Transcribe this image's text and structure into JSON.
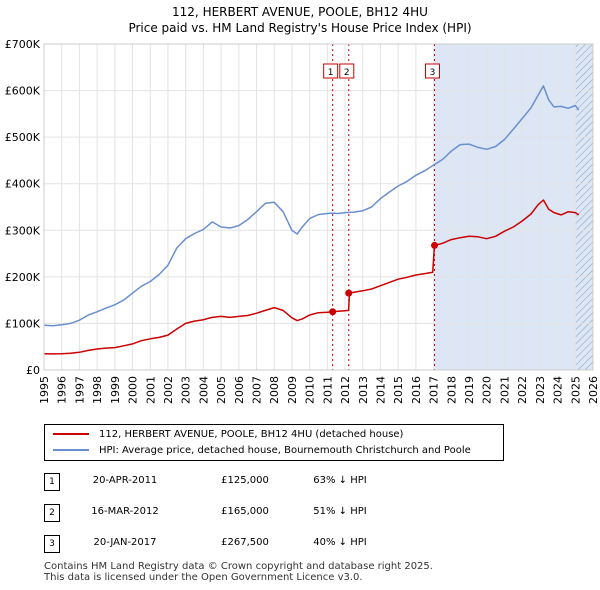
{
  "title_line1": "112, HERBERT AVENUE, POOLE, BH12 4HU",
  "title_line2": "Price paid vs. HM Land Registry's House Price Index (HPI)",
  "colors": {
    "price": "#cc0000",
    "hpi": "#6a8fd0",
    "shade": "#dce6f5",
    "marker": "#cc0000"
  },
  "chart_data": {
    "type": "line",
    "title": "Price paid vs. HM Land Registry's House Price Index (HPI)",
    "xlabel": "",
    "ylabel": "",
    "xlim": [
      1995,
      2026
    ],
    "ylim": [
      0,
      700000
    ],
    "y_ticks": [
      0,
      100000,
      200000,
      300000,
      400000,
      500000,
      600000,
      700000
    ],
    "y_tick_labels": [
      "£0",
      "£100K",
      "£200K",
      "£300K",
      "£400K",
      "£500K",
      "£600K",
      "£700K"
    ],
    "x_ticks": [
      1995,
      1996,
      1997,
      1998,
      1999,
      2000,
      2001,
      2002,
      2003,
      2004,
      2005,
      2006,
      2007,
      2008,
      2009,
      2010,
      2011,
      2012,
      2013,
      2014,
      2015,
      2016,
      2017,
      2018,
      2019,
      2020,
      2021,
      2022,
      2023,
      2024,
      2025,
      2026
    ],
    "x_tick_labels": [
      "1995",
      "1996",
      "1997",
      "1998",
      "1999",
      "2000",
      "2001",
      "2002",
      "2003",
      "2004",
      "2005",
      "2006",
      "2007",
      "2008",
      "2009",
      "2010",
      "2011",
      "2012",
      "2013",
      "2014",
      "2015",
      "2016",
      "2017",
      "2018",
      "2019",
      "2020",
      "2021",
      "2022",
      "2023",
      "2024",
      "2025",
      "2026"
    ],
    "shaded_from": 2017.05,
    "hatched_from": 2025.0,
    "grid": true,
    "legend_position": "below",
    "series": [
      {
        "name": "112, HERBERT AVENUE, POOLE, BH12 4HU (detached house)",
        "x": [
          1995.0,
          1995.5,
          1996.0,
          1996.5,
          1997.0,
          1997.5,
          1998.0,
          1998.5,
          1999.0,
          1999.5,
          2000.0,
          2000.5,
          2001.0,
          2001.5,
          2002.0,
          2002.5,
          2003.0,
          2003.5,
          2004.0,
          2004.5,
          2005.0,
          2005.5,
          2006.0,
          2006.5,
          2007.0,
          2007.5,
          2008.0,
          2008.5,
          2009.0,
          2009.3,
          2009.6,
          2010.0,
          2010.5,
          2011.0,
          2011.3,
          2011.6,
          2011.9,
          2012.2,
          2012.25,
          2012.5,
          2013.0,
          2013.5,
          2014.0,
          2014.5,
          2015.0,
          2015.5,
          2016.0,
          2016.5,
          2016.95,
          2017.05,
          2017.5,
          2018.0,
          2018.5,
          2019.0,
          2019.5,
          2020.0,
          2020.5,
          2021.0,
          2021.5,
          2022.0,
          2022.5,
          2022.9,
          2023.2,
          2023.5,
          2023.8,
          2024.2,
          2024.6,
          2025.0,
          2025.2
        ],
        "values": [
          35000,
          34500,
          35000,
          36000,
          38000,
          42000,
          45000,
          47000,
          48000,
          52000,
          56000,
          63000,
          67000,
          70000,
          75000,
          88000,
          100000,
          105000,
          108000,
          113000,
          115000,
          113000,
          115000,
          117000,
          122000,
          128000,
          134000,
          128000,
          112000,
          106000,
          110000,
          118000,
          123000,
          124000,
          125000,
          126000,
          127000,
          128000,
          165000,
          167000,
          170000,
          174000,
          181000,
          188000,
          195000,
          199000,
          204000,
          207000,
          210000,
          267500,
          272000,
          280000,
          284000,
          287000,
          286000,
          282000,
          287000,
          298000,
          307000,
          320000,
          335000,
          355000,
          365000,
          345000,
          338000,
          333000,
          340000,
          338000,
          333000
        ]
      },
      {
        "name": "HPI: Average price, detached house, Bournemouth Christchurch and Poole",
        "x": [
          1995.0,
          1995.5,
          1996.0,
          1996.5,
          1997.0,
          1997.5,
          1998.0,
          1998.5,
          1999.0,
          1999.5,
          2000.0,
          2000.5,
          2001.0,
          2001.5,
          2002.0,
          2002.5,
          2003.0,
          2003.5,
          2004.0,
          2004.5,
          2005.0,
          2005.5,
          2006.0,
          2006.5,
          2007.0,
          2007.5,
          2008.0,
          2008.5,
          2009.0,
          2009.3,
          2009.6,
          2010.0,
          2010.5,
          2011.0,
          2011.3,
          2011.6,
          2012.0,
          2012.5,
          2013.0,
          2013.5,
          2014.0,
          2014.5,
          2015.0,
          2015.5,
          2016.0,
          2016.5,
          2017.0,
          2017.5,
          2018.0,
          2018.5,
          2019.0,
          2019.5,
          2020.0,
          2020.5,
          2021.0,
          2021.5,
          2022.0,
          2022.5,
          2022.9,
          2023.2,
          2023.5,
          2023.8,
          2024.2,
          2024.6,
          2025.0,
          2025.2
        ],
        "values": [
          96000,
          95000,
          97000,
          100000,
          107000,
          118000,
          125000,
          133000,
          140000,
          150000,
          165000,
          180000,
          190000,
          205000,
          225000,
          262000,
          282000,
          293000,
          302000,
          318000,
          307000,
          305000,
          310000,
          323000,
          340000,
          358000,
          360000,
          340000,
          300000,
          292000,
          308000,
          325000,
          334000,
          336000,
          337000,
          336000,
          338000,
          339000,
          342000,
          350000,
          368000,
          382000,
          395000,
          405000,
          418000,
          428000,
          440000,
          452000,
          470000,
          484000,
          485000,
          478000,
          474000,
          480000,
          495000,
          517000,
          540000,
          563000,
          590000,
          610000,
          580000,
          565000,
          566000,
          562000,
          568000,
          558000
        ]
      }
    ],
    "sales": [
      {
        "label": "1",
        "x": 2011.3,
        "value": 125000
      },
      {
        "label": "2",
        "x": 2012.21,
        "value": 165000
      },
      {
        "label": "3",
        "x": 2017.05,
        "value": 267500
      }
    ]
  },
  "legend": {
    "price_label": "112, HERBERT AVENUE, POOLE, BH12 4HU (detached house)",
    "hpi_label": "HPI: Average price, detached house, Bournemouth Christchurch and Poole"
  },
  "sales_table": [
    {
      "num": "1",
      "date": "20-APR-2011",
      "price": "£125,000",
      "pct": "63% ↓ HPI"
    },
    {
      "num": "2",
      "date": "16-MAR-2012",
      "price": "£165,000",
      "pct": "51% ↓ HPI"
    },
    {
      "num": "3",
      "date": "20-JAN-2017",
      "price": "£267,500",
      "pct": "40% ↓ HPI"
    }
  ],
  "footer_line1": "Contains HM Land Registry data © Crown copyright and database right 2025.",
  "footer_line2": "This data is licensed under the Open Government Licence v3.0."
}
